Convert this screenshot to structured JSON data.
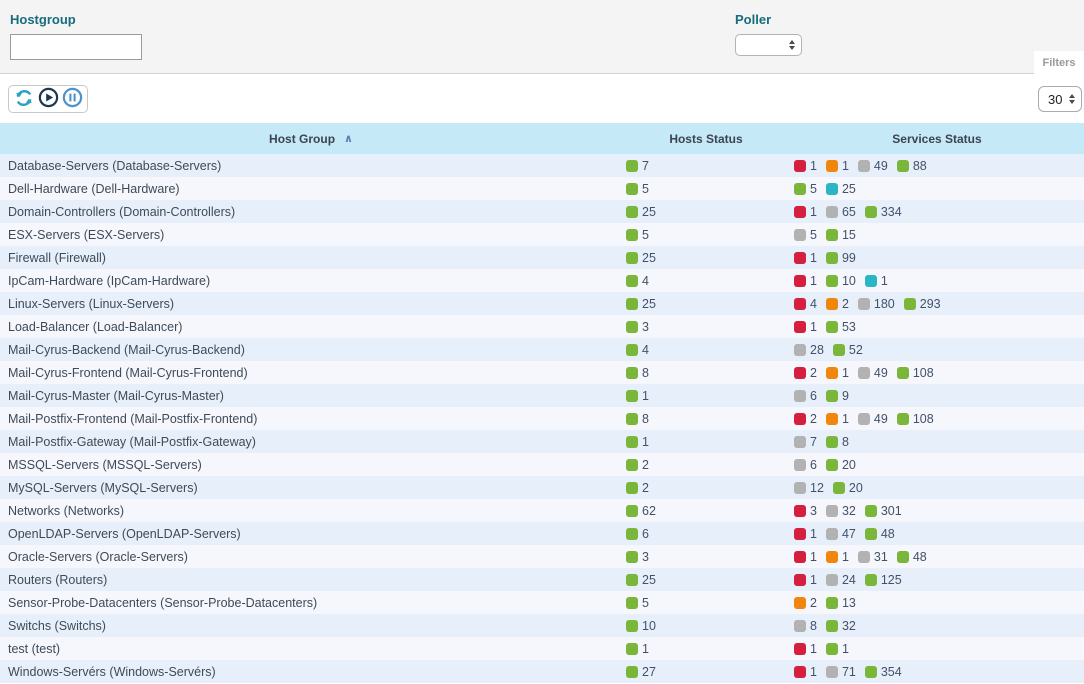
{
  "filters": {
    "hostgroup_label": "Hostgroup",
    "hostgroup_value": "",
    "poller_label": "Poller",
    "poller_value": "",
    "filters_tab_label": "Filters"
  },
  "toolbar": {
    "refresh_icon": "refresh",
    "play_icon": "play",
    "pause_icon": "pause",
    "page_size": "30"
  },
  "table": {
    "columns": [
      "Host Group",
      "Hosts Status",
      "Services Status"
    ],
    "sort": {
      "column": "Host Group",
      "direction": "asc",
      "indicator": "∧"
    },
    "status_colors": {
      "ok": "#79b63a",
      "warning": "#f1860d",
      "critical": "#d41f3e",
      "unknown": "#b2b2b2",
      "pending": "#2cb5c4"
    },
    "rows": [
      {
        "name": "Database-Servers (Database-Servers)",
        "hosts": [
          {
            "type": "ok",
            "count": "7"
          }
        ],
        "services": [
          {
            "type": "critical",
            "count": "1"
          },
          {
            "type": "warning",
            "count": "1"
          },
          {
            "type": "unknown",
            "count": "49"
          },
          {
            "type": "ok",
            "count": "88"
          }
        ]
      },
      {
        "name": "Dell-Hardware (Dell-Hardware)",
        "hosts": [
          {
            "type": "ok",
            "count": "5"
          }
        ],
        "services": [
          {
            "type": "ok",
            "count": "5"
          },
          {
            "type": "pending",
            "count": "25"
          }
        ]
      },
      {
        "name": "Domain-Controllers (Domain-Controllers)",
        "hosts": [
          {
            "type": "ok",
            "count": "25"
          }
        ],
        "services": [
          {
            "type": "critical",
            "count": "1"
          },
          {
            "type": "unknown",
            "count": "65"
          },
          {
            "type": "ok",
            "count": "334"
          }
        ]
      },
      {
        "name": "ESX-Servers (ESX-Servers)",
        "hosts": [
          {
            "type": "ok",
            "count": "5"
          }
        ],
        "services": [
          {
            "type": "unknown",
            "count": "5"
          },
          {
            "type": "ok",
            "count": "15"
          }
        ]
      },
      {
        "name": "Firewall (Firewall)",
        "hosts": [
          {
            "type": "ok",
            "count": "25"
          }
        ],
        "services": [
          {
            "type": "critical",
            "count": "1"
          },
          {
            "type": "ok",
            "count": "99"
          }
        ]
      },
      {
        "name": "IpCam-Hardware (IpCam-Hardware)",
        "hosts": [
          {
            "type": "ok",
            "count": "4"
          }
        ],
        "services": [
          {
            "type": "critical",
            "count": "1"
          },
          {
            "type": "ok",
            "count": "10"
          },
          {
            "type": "pending",
            "count": "1"
          }
        ]
      },
      {
        "name": "Linux-Servers (Linux-Servers)",
        "hosts": [
          {
            "type": "ok",
            "count": "25"
          }
        ],
        "services": [
          {
            "type": "critical",
            "count": "4"
          },
          {
            "type": "warning",
            "count": "2"
          },
          {
            "type": "unknown",
            "count": "180"
          },
          {
            "type": "ok",
            "count": "293"
          }
        ]
      },
      {
        "name": "Load-Balancer (Load-Balancer)",
        "hosts": [
          {
            "type": "ok",
            "count": "3"
          }
        ],
        "services": [
          {
            "type": "critical",
            "count": "1"
          },
          {
            "type": "ok",
            "count": "53"
          }
        ]
      },
      {
        "name": "Mail-Cyrus-Backend (Mail-Cyrus-Backend)",
        "hosts": [
          {
            "type": "ok",
            "count": "4"
          }
        ],
        "services": [
          {
            "type": "unknown",
            "count": "28"
          },
          {
            "type": "ok",
            "count": "52"
          }
        ]
      },
      {
        "name": "Mail-Cyrus-Frontend (Mail-Cyrus-Frontend)",
        "hosts": [
          {
            "type": "ok",
            "count": "8"
          }
        ],
        "services": [
          {
            "type": "critical",
            "count": "2"
          },
          {
            "type": "warning",
            "count": "1"
          },
          {
            "type": "unknown",
            "count": "49"
          },
          {
            "type": "ok",
            "count": "108"
          }
        ]
      },
      {
        "name": "Mail-Cyrus-Master (Mail-Cyrus-Master)",
        "hosts": [
          {
            "type": "ok",
            "count": "1"
          }
        ],
        "services": [
          {
            "type": "unknown",
            "count": "6"
          },
          {
            "type": "ok",
            "count": "9"
          }
        ]
      },
      {
        "name": "Mail-Postfix-Frontend (Mail-Postfix-Frontend)",
        "hosts": [
          {
            "type": "ok",
            "count": "8"
          }
        ],
        "services": [
          {
            "type": "critical",
            "count": "2"
          },
          {
            "type": "warning",
            "count": "1"
          },
          {
            "type": "unknown",
            "count": "49"
          },
          {
            "type": "ok",
            "count": "108"
          }
        ]
      },
      {
        "name": "Mail-Postfix-Gateway (Mail-Postfix-Gateway)",
        "hosts": [
          {
            "type": "ok",
            "count": "1"
          }
        ],
        "services": [
          {
            "type": "unknown",
            "count": "7"
          },
          {
            "type": "ok",
            "count": "8"
          }
        ]
      },
      {
        "name": "MSSQL-Servers (MSSQL-Servers)",
        "hosts": [
          {
            "type": "ok",
            "count": "2"
          }
        ],
        "services": [
          {
            "type": "unknown",
            "count": "6"
          },
          {
            "type": "ok",
            "count": "20"
          }
        ]
      },
      {
        "name": "MySQL-Servers (MySQL-Servers)",
        "hosts": [
          {
            "type": "ok",
            "count": "2"
          }
        ],
        "services": [
          {
            "type": "unknown",
            "count": "12"
          },
          {
            "type": "ok",
            "count": "20"
          }
        ]
      },
      {
        "name": "Networks (Networks)",
        "hosts": [
          {
            "type": "ok",
            "count": "62"
          }
        ],
        "services": [
          {
            "type": "critical",
            "count": "3"
          },
          {
            "type": "unknown",
            "count": "32"
          },
          {
            "type": "ok",
            "count": "301"
          }
        ]
      },
      {
        "name": "OpenLDAP-Servers (OpenLDAP-Servers)",
        "hosts": [
          {
            "type": "ok",
            "count": "6"
          }
        ],
        "services": [
          {
            "type": "critical",
            "count": "1"
          },
          {
            "type": "unknown",
            "count": "47"
          },
          {
            "type": "ok",
            "count": "48"
          }
        ]
      },
      {
        "name": "Oracle-Servers (Oracle-Servers)",
        "hosts": [
          {
            "type": "ok",
            "count": "3"
          }
        ],
        "services": [
          {
            "type": "critical",
            "count": "1"
          },
          {
            "type": "warning",
            "count": "1"
          },
          {
            "type": "unknown",
            "count": "31"
          },
          {
            "type": "ok",
            "count": "48"
          }
        ]
      },
      {
        "name": "Routers (Routers)",
        "hosts": [
          {
            "type": "ok",
            "count": "25"
          }
        ],
        "services": [
          {
            "type": "critical",
            "count": "1"
          },
          {
            "type": "unknown",
            "count": "24"
          },
          {
            "type": "ok",
            "count": "125"
          }
        ]
      },
      {
        "name": "Sensor-Probe-Datacenters (Sensor-Probe-Datacenters)",
        "hosts": [
          {
            "type": "ok",
            "count": "5"
          }
        ],
        "services": [
          {
            "type": "warning",
            "count": "2"
          },
          {
            "type": "ok",
            "count": "13"
          }
        ]
      },
      {
        "name": "Switchs (Switchs)",
        "hosts": [
          {
            "type": "ok",
            "count": "10"
          }
        ],
        "services": [
          {
            "type": "unknown",
            "count": "8"
          },
          {
            "type": "ok",
            "count": "32"
          }
        ]
      },
      {
        "name": "test (test)",
        "hosts": [
          {
            "type": "ok",
            "count": "1"
          }
        ],
        "services": [
          {
            "type": "critical",
            "count": "1"
          },
          {
            "type": "ok",
            "count": "1"
          }
        ]
      },
      {
        "name": "Windows-Servérs (Windows-Servérs)",
        "hosts": [
          {
            "type": "ok",
            "count": "27"
          }
        ],
        "services": [
          {
            "type": "critical",
            "count": "1"
          },
          {
            "type": "unknown",
            "count": "71"
          },
          {
            "type": "ok",
            "count": "354"
          }
        ]
      }
    ]
  }
}
